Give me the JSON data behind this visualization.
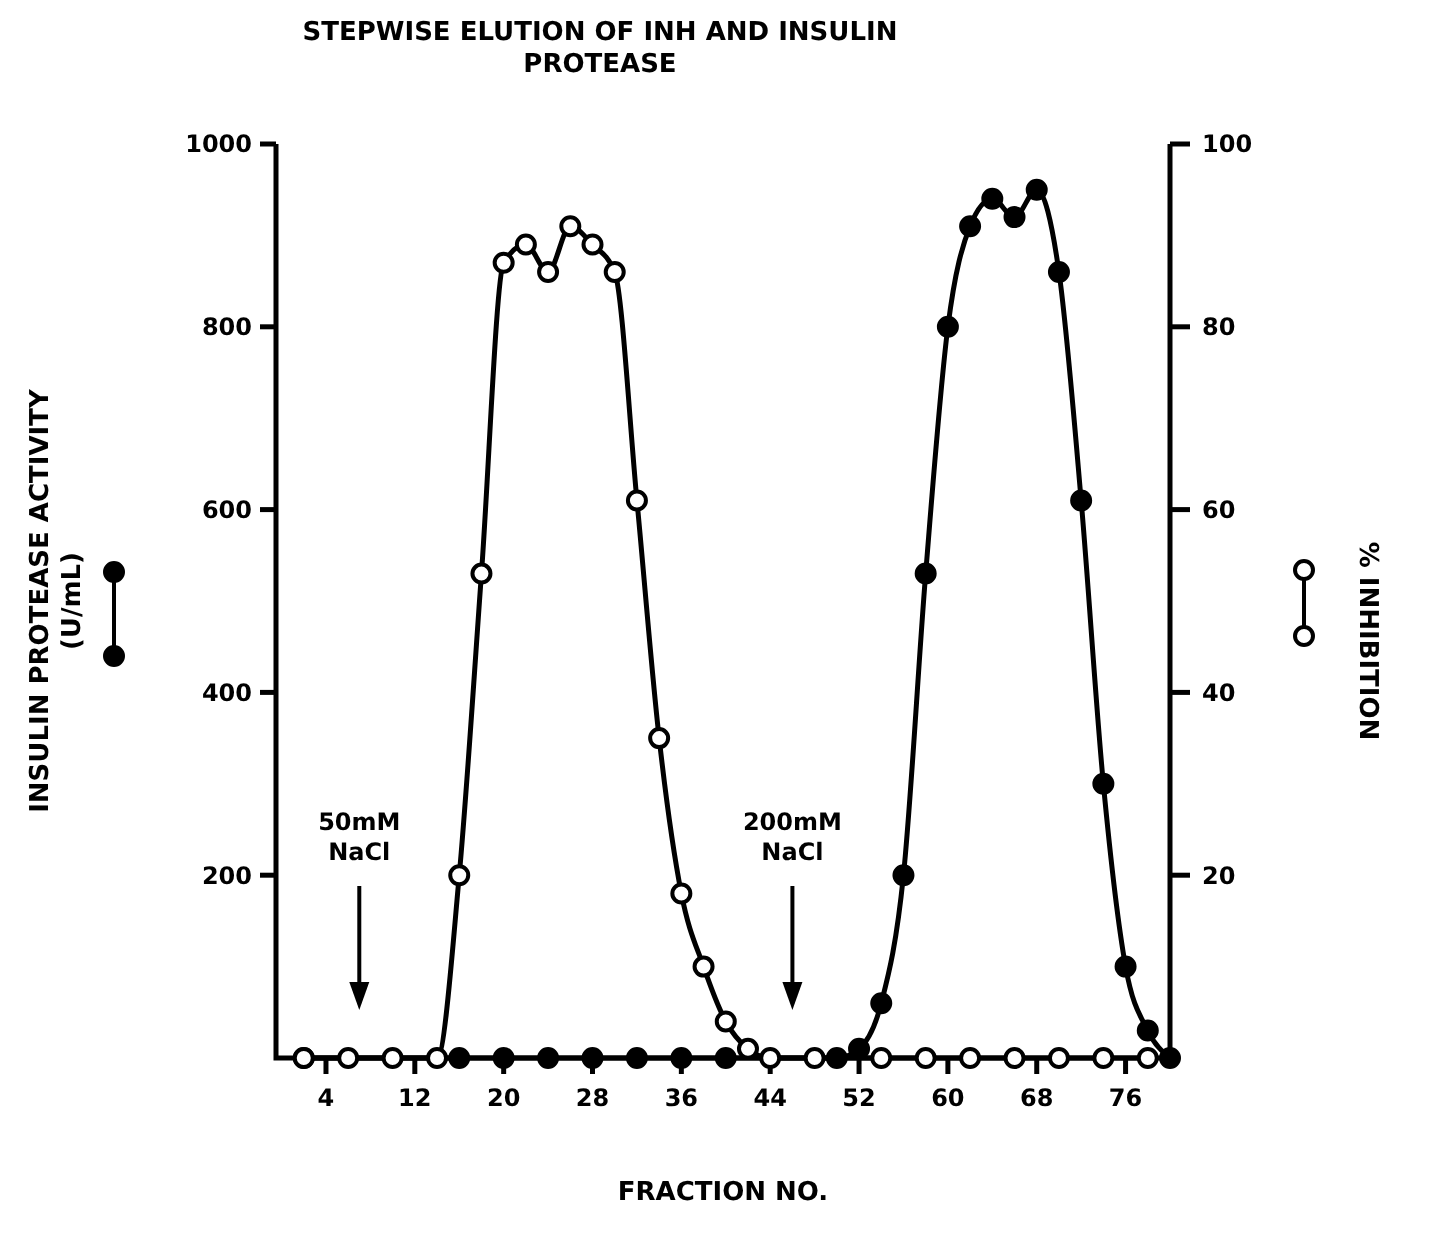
{
  "chart_data": {
    "type": "line",
    "title": "STEPWISE ELUTION OF INH AND INSULIN\nPROTEASE",
    "xlabel": "FRACTION NO.",
    "ylabel": "INSULIN PROTEASE ACTIVITY\n(U/mL)",
    "y2label": "% INHIBITION",
    "xlim": [
      -0.5,
      80
    ],
    "xticks": [
      4,
      12,
      20,
      28,
      36,
      44,
      52,
      60,
      68,
      76
    ],
    "ylim": [
      0,
      1000
    ],
    "yticks": [
      200,
      400,
      600,
      800,
      1000
    ],
    "y2lim": [
      0,
      100
    ],
    "y2ticks": [
      20,
      40,
      60,
      80,
      100
    ],
    "grid": false,
    "marker": "circle",
    "line_style": "solid",
    "series": [
      {
        "color": "#000000",
        "axis": "y",
        "x": [
          2,
          16,
          20,
          24,
          28,
          32,
          36,
          40,
          50,
          52,
          54,
          56,
          58,
          60,
          62,
          64,
          66,
          68,
          70,
          72,
          74,
          76,
          78,
          80
        ],
        "values": [
          0,
          0,
          0,
          0,
          0,
          0,
          0,
          0,
          0,
          10,
          60,
          200,
          530,
          800,
          910,
          940,
          920,
          950,
          860,
          610,
          300,
          100,
          30,
          0
        ]
      },
      {
        "color": "#000000",
        "axis": "y2",
        "x": [
          2,
          6,
          10,
          14,
          16,
          18,
          20,
          22,
          24,
          26,
          28,
          30,
          32,
          34,
          36,
          38,
          40,
          42,
          44,
          48,
          54,
          58,
          62,
          66,
          70,
          74,
          78
        ],
        "values": [
          0,
          0,
          0,
          0,
          20,
          53,
          87,
          89,
          86,
          91,
          89,
          86,
          61,
          35,
          18,
          10,
          4,
          1,
          0,
          0,
          0,
          0,
          0,
          0,
          0,
          0,
          0
        ]
      }
    ],
    "ref_lines": [
      {
        "axis": "x",
        "value": 7,
        "label": "50mM\nNaCl"
      },
      {
        "axis": "x",
        "value": 46,
        "label": "200mM\nNaCl"
      }
    ]
  }
}
